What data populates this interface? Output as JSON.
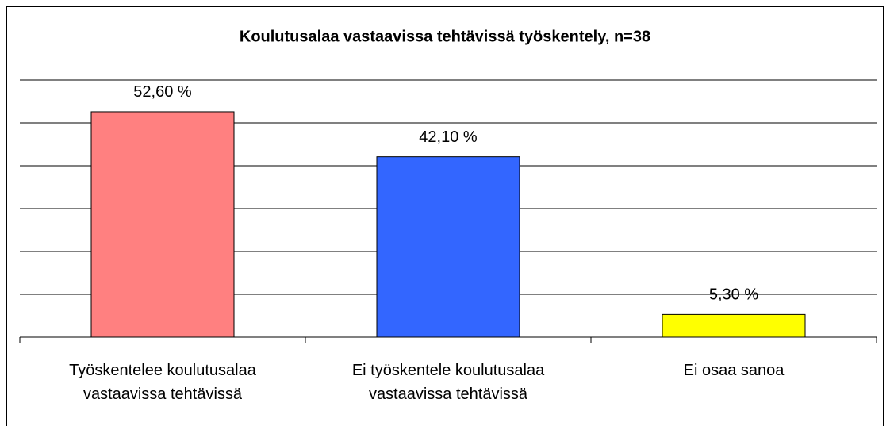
{
  "chart_data": {
    "type": "bar",
    "title": "Koulutusalaa vastaavissa tehtävissä työskentely, n=38",
    "categories": [
      "Työskentelee koulutusalaa vastaavissa tehtävissä",
      "Ei työskentele koulutusalaa vastaavissa tehtävissä",
      "Ei osaa sanoa"
    ],
    "values": [
      52.6,
      42.1,
      5.3
    ],
    "value_labels": [
      "52,60 %",
      "42,10 %",
      "5,30 %"
    ],
    "colors": [
      "#ff8080",
      "#3366ff",
      "#ffff00"
    ],
    "ylim": [
      0,
      60
    ],
    "yticks": [
      0,
      10,
      20,
      30,
      40,
      50,
      60
    ],
    "grid": true
  }
}
